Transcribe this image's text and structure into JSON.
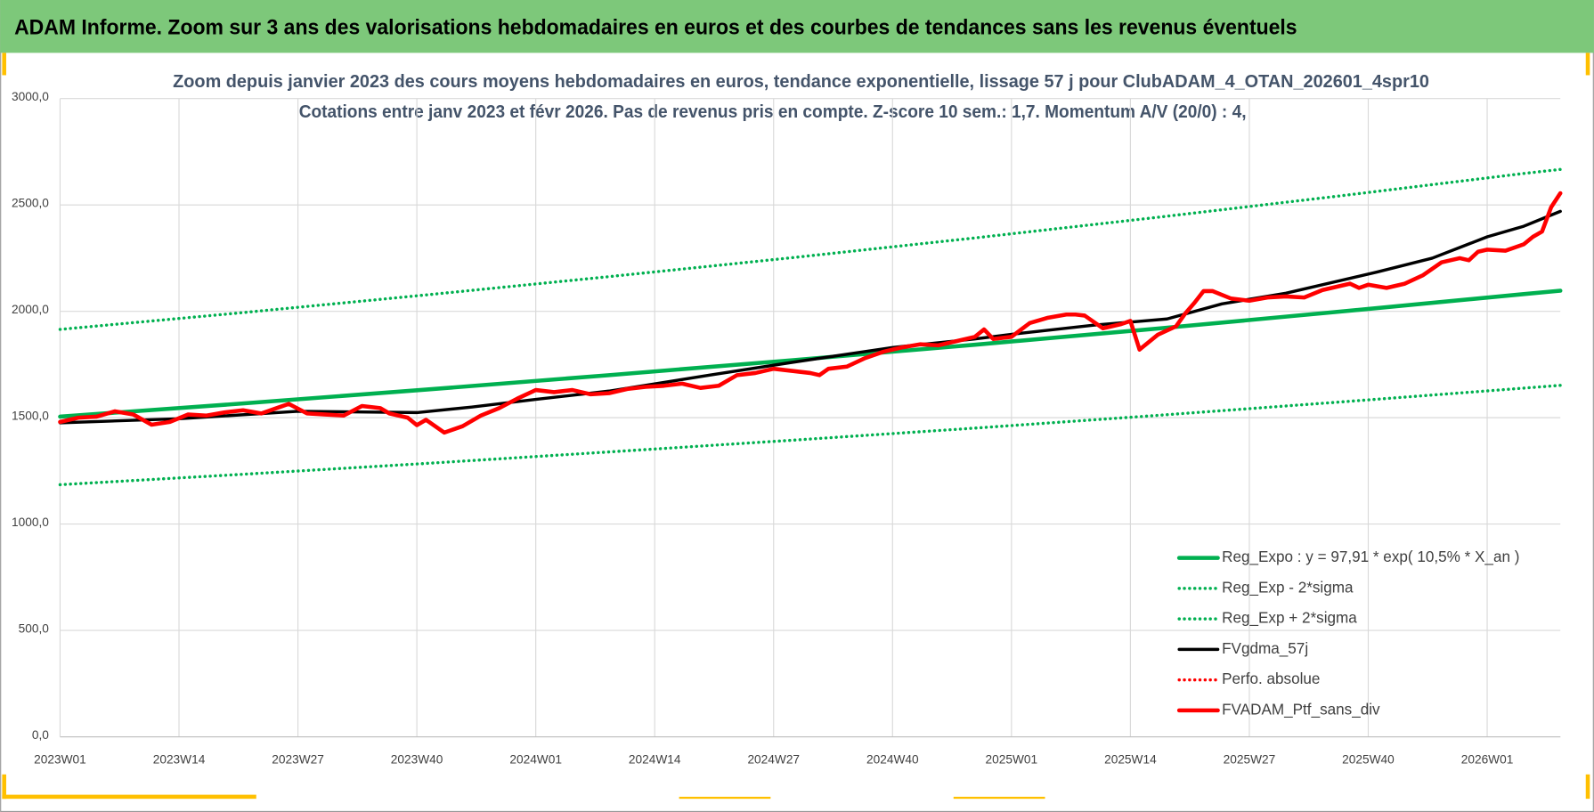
{
  "header": {
    "title": "ADAM Informe. Zoom sur 3 ans des valorisations hebdomadaires en euros et des courbes de tendances sans les revenus éventuels"
  },
  "chart_data": {
    "type": "line",
    "title": "Zoom depuis janvier 2023 des cours moyens hebdomadaires en euros, tendance exponentielle, lissage 57 j pour ClubADAM_4_OTAN_202601_4spr10",
    "subtitle": "Cotations entre janv 2023 et févr 2026. Pas de revenus pris en compte. Z-score 10 sem.: 1,7. Momentum A/V (20/0) : 4,",
    "xlim": [
      0,
      164
    ],
    "xticks": [
      {
        "value": 0,
        "label": "2023W01"
      },
      {
        "value": 13,
        "label": "2023W14"
      },
      {
        "value": 26,
        "label": "2023W27"
      },
      {
        "value": 39,
        "label": "2023W40"
      },
      {
        "value": 52,
        "label": "2024W01"
      },
      {
        "value": 65,
        "label": "2024W14"
      },
      {
        "value": 78,
        "label": "2024W27"
      },
      {
        "value": 91,
        "label": "2024W40"
      },
      {
        "value": 104,
        "label": "2025W01"
      },
      {
        "value": 117,
        "label": "2025W14"
      },
      {
        "value": 130,
        "label": "2025W27"
      },
      {
        "value": 143,
        "label": "2025W40"
      },
      {
        "value": 156,
        "label": "2026W01"
      }
    ],
    "ylim": [
      0,
      3000
    ],
    "yticks": [
      {
        "value": 0,
        "label": "0,0"
      },
      {
        "value": 500,
        "label": "500,0"
      },
      {
        "value": 1000,
        "label": "1000,0"
      },
      {
        "value": 1500,
        "label": "1500,0"
      },
      {
        "value": 2000,
        "label": "2000,0"
      },
      {
        "value": 2500,
        "label": "2500,0"
      },
      {
        "value": 3000,
        "label": "3000,0"
      }
    ],
    "grid": true,
    "series": [
      {
        "name": "Reg_Expo : y = 97,91 * exp( 10,5% *  X_an )",
        "color": "#00b050",
        "style": "solid",
        "width": 4,
        "x": [
          0,
          20,
          40,
          60,
          80,
          100,
          120,
          140,
          160,
          164
        ],
        "values": [
          1505,
          1567,
          1632,
          1700,
          1770,
          1843,
          1919,
          1999,
          2081,
          2097
        ]
      },
      {
        "name": "Reg_Exp - 2*sigma",
        "color": "#00b050",
        "style": "dotted",
        "width": 3,
        "x": [
          0,
          20,
          40,
          60,
          80,
          100,
          120,
          140,
          160,
          164
        ],
        "values": [
          1185,
          1234,
          1285,
          1339,
          1394,
          1451,
          1511,
          1574,
          1639,
          1652
        ]
      },
      {
        "name": "Reg_Exp + 2*sigma",
        "color": "#00b050",
        "style": "dotted",
        "width": 3,
        "x": [
          0,
          20,
          40,
          60,
          80,
          100,
          120,
          140,
          160,
          164
        ],
        "values": [
          1915,
          1994,
          2077,
          2163,
          2252,
          2345,
          2442,
          2543,
          2648,
          2667
        ]
      },
      {
        "name": "FVgdma_57j",
        "color": "#000000",
        "style": "solid",
        "width": 3,
        "x": [
          0,
          13,
          26,
          39,
          45,
          52,
          60,
          71,
          80,
          91,
          100,
          105,
          113,
          121,
          127,
          134,
          144,
          150,
          156,
          160,
          164
        ],
        "values": [
          1476,
          1495,
          1530,
          1524,
          1550,
          1586,
          1625,
          1700,
          1760,
          1830,
          1870,
          1897,
          1935,
          1964,
          2035,
          2085,
          2185,
          2250,
          2350,
          2400,
          2470
        ]
      },
      {
        "name": "Perfo. absolue",
        "color": "#ff0000",
        "style": "dotted",
        "width": 3,
        "x": [],
        "values": []
      },
      {
        "name": "FVADAM_Ptf_sans_div",
        "color": "#ff0000",
        "style": "solid",
        "width": 4,
        "x": [
          0,
          2,
          4,
          6,
          8,
          10,
          12,
          14,
          16,
          18,
          20,
          22,
          24,
          25,
          27,
          29,
          31,
          33,
          35,
          36,
          38,
          39,
          40,
          42,
          44,
          46,
          48,
          50,
          52,
          54,
          56,
          58,
          60,
          62,
          64,
          66,
          68,
          70,
          72,
          74,
          76,
          78,
          80,
          82,
          83,
          84,
          86,
          88,
          90,
          92,
          94,
          96,
          98,
          100,
          101,
          102,
          104,
          106,
          108,
          110,
          111,
          112,
          114,
          116,
          117,
          118,
          120,
          122,
          123,
          124,
          125,
          126,
          128,
          130,
          132,
          134,
          136,
          138,
          140,
          141,
          142,
          143,
          145,
          147,
          149,
          150,
          151,
          152,
          153,
          154,
          155,
          156,
          158,
          159,
          160,
          161,
          162,
          163,
          164
        ],
        "values": [
          1480,
          1500,
          1505,
          1530,
          1515,
          1467,
          1480,
          1515,
          1510,
          1525,
          1535,
          1520,
          1550,
          1565,
          1520,
          1515,
          1510,
          1555,
          1545,
          1520,
          1500,
          1465,
          1490,
          1430,
          1460,
          1510,
          1545,
          1590,
          1630,
          1620,
          1630,
          1610,
          1615,
          1635,
          1645,
          1650,
          1660,
          1640,
          1650,
          1700,
          1710,
          1730,
          1720,
          1710,
          1700,
          1730,
          1740,
          1780,
          1810,
          1830,
          1845,
          1840,
          1860,
          1880,
          1915,
          1870,
          1880,
          1945,
          1970,
          1985,
          1985,
          1980,
          1920,
          1940,
          1955,
          1820,
          1890,
          1930,
          1990,
          2040,
          2095,
          2095,
          2060,
          2050,
          2065,
          2070,
          2065,
          2100,
          2120,
          2130,
          2110,
          2125,
          2110,
          2130,
          2170,
          2200,
          2230,
          2240,
          2250,
          2240,
          2280,
          2290,
          2285,
          2300,
          2315,
          2350,
          2375,
          2490,
          2555
        ]
      }
    ],
    "legend": "lower right"
  }
}
